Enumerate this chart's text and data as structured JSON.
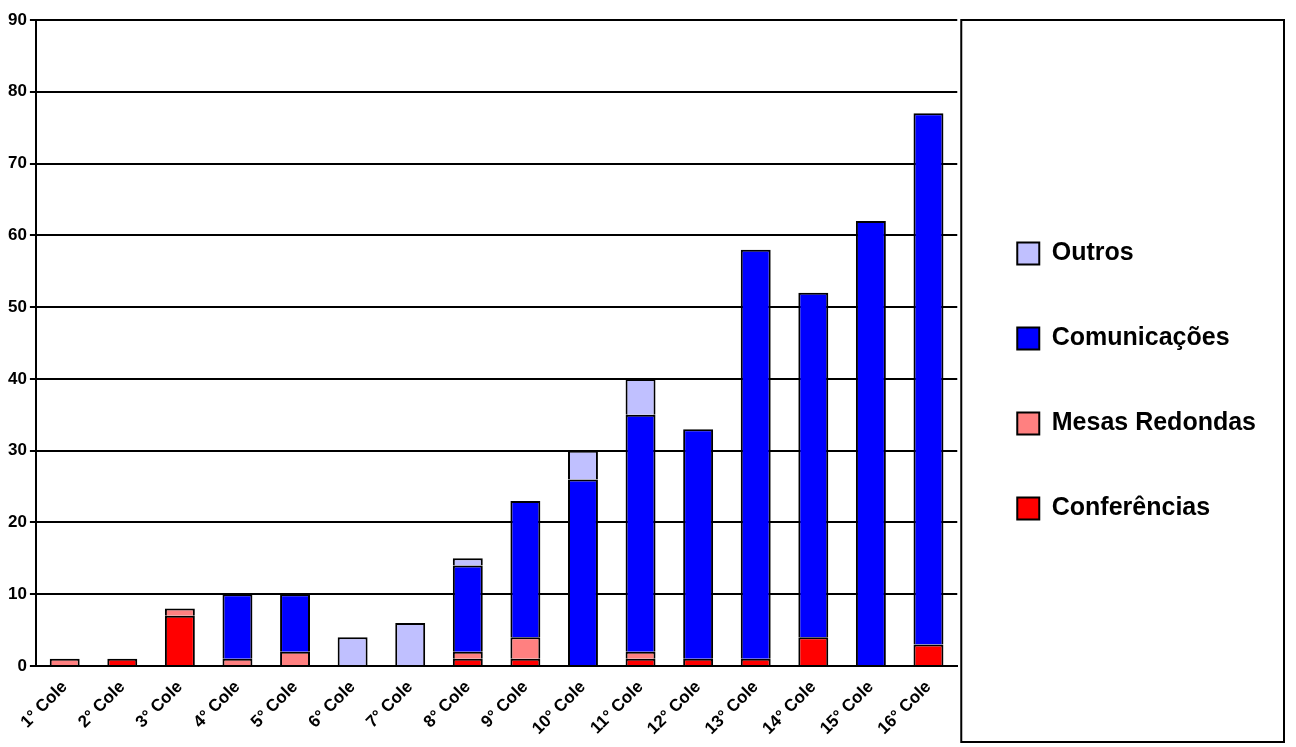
{
  "chart_data": {
    "type": "bar",
    "stacked": true,
    "categories": [
      "1° Cole",
      "2° Cole",
      "3° Cole",
      "4° Cole",
      "5° Cole",
      "6° Cole",
      "7° Cole",
      "8° Cole",
      "9° Cole",
      "10° Cole",
      "11° Cole",
      "12° Cole",
      "13° Cole",
      "14° Cole",
      "15° Cole",
      "16° Cole"
    ],
    "series": [
      {
        "name": "Conferências",
        "color": "#ff0000",
        "values": [
          0,
          1,
          7,
          0,
          0,
          0,
          0,
          1,
          1,
          0,
          1,
          1,
          1,
          4,
          0,
          3
        ]
      },
      {
        "name": "Mesas Redondas",
        "color": "#ff8080",
        "values": [
          1,
          0,
          1,
          1,
          2,
          0,
          0,
          1,
          3,
          0,
          1,
          0,
          0,
          0,
          0,
          0
        ]
      },
      {
        "name": "Comunicações",
        "color": "#0000ff",
        "values": [
          0,
          0,
          0,
          9,
          8,
          0,
          0,
          12,
          19,
          26,
          33,
          32,
          57,
          48,
          62,
          74
        ]
      },
      {
        "name": "Outros",
        "color": "#c0c0ff",
        "values": [
          0,
          0,
          0,
          0,
          0,
          4,
          6,
          1,
          0,
          4,
          5,
          0,
          0,
          0,
          0,
          0
        ]
      }
    ],
    "ylim": [
      0,
      90
    ],
    "yticks": [
      0,
      10,
      20,
      30,
      40,
      50,
      60,
      70,
      80,
      90
    ],
    "grid": "y",
    "legend": "right"
  }
}
